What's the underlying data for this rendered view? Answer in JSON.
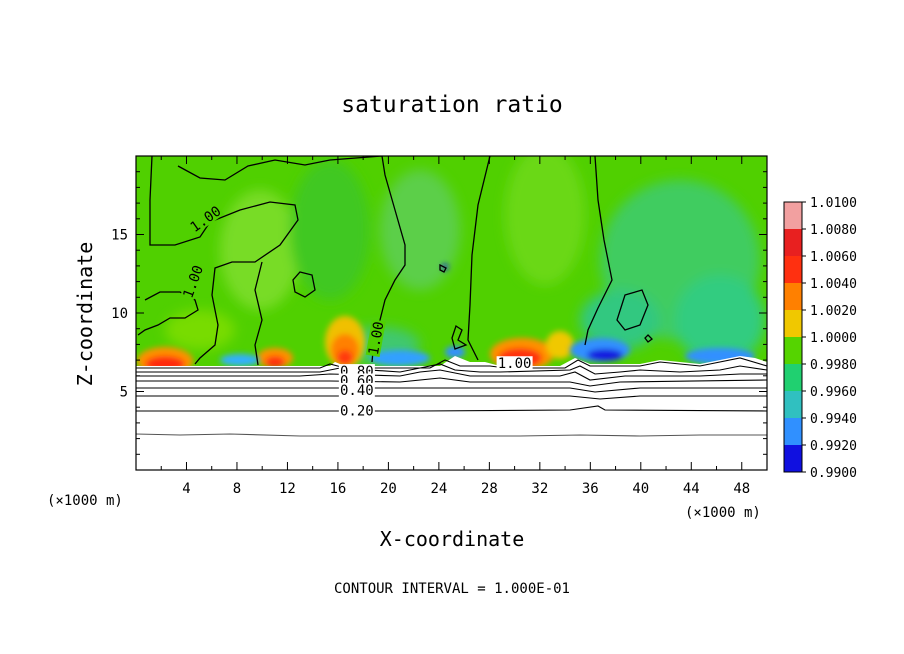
{
  "chart_data": {
    "type": "heatmap",
    "title": "saturation ratio",
    "xlabel": "X-coordinate",
    "ylabel": "Z-coordinate",
    "x_unit": "(×1000 m)",
    "z_unit": "(×1000 m)",
    "xlim": [
      0,
      50
    ],
    "ylim": [
      0,
      20
    ],
    "x_ticks": [
      "4",
      "8",
      "12",
      "16",
      "20",
      "24",
      "28",
      "32",
      "36",
      "40",
      "44",
      "48"
    ],
    "y_ticks": [
      "5",
      "10",
      "15"
    ],
    "footer": "CONTOUR INTERVAL = 1.000E-01",
    "colorbar": {
      "labels": [
        "1.0100",
        "1.0080",
        "1.0060",
        "1.0040",
        "1.0020",
        "1.0000",
        "0.9980",
        "0.9960",
        "0.9940",
        "0.9920",
        "0.9900"
      ],
      "colors": [
        "#f2a0a0",
        "#e82020",
        "#ff3010",
        "#ff8000",
        "#f0c800",
        "#d8e800",
        "#55d400",
        "#20d070",
        "#3090ff",
        "#1010e0",
        "#6020a0"
      ]
    },
    "contour_labels": [
      {
        "x": 5.5,
        "z": 16.0,
        "text": "1.00"
      },
      {
        "x": 4.5,
        "z": 12.0,
        "text": "1.00"
      },
      {
        "x": 19.0,
        "z": 8.4,
        "text": "1.00"
      },
      {
        "x": 30.0,
        "z": 6.8,
        "text": "1.00"
      },
      {
        "x": 17.5,
        "z": 6.3,
        "text": "0.80"
      },
      {
        "x": 17.5,
        "z": 5.7,
        "text": "0.60"
      },
      {
        "x": 17.5,
        "z": 5.1,
        "text": "0.40"
      },
      {
        "x": 17.5,
        "z": 3.8,
        "text": "0.20"
      }
    ],
    "boundary_layer_top_z": 6.8,
    "field_notes_hot": [
      {
        "x": 2.5,
        "z": 7.2,
        "level": 1.006
      },
      {
        "x": 10.5,
        "z": 7.2,
        "level": 1.006
      },
      {
        "x": 16.5,
        "z": 7.4,
        "level": 1.004
      },
      {
        "x": 30.5,
        "z": 7.3,
        "level": 1.006
      }
    ],
    "field_notes_cold": [
      {
        "x": 37.5,
        "z": 7.6,
        "level": 0.994
      },
      {
        "x": 21.0,
        "z": 7.1,
        "level": 0.996
      }
    ]
  }
}
